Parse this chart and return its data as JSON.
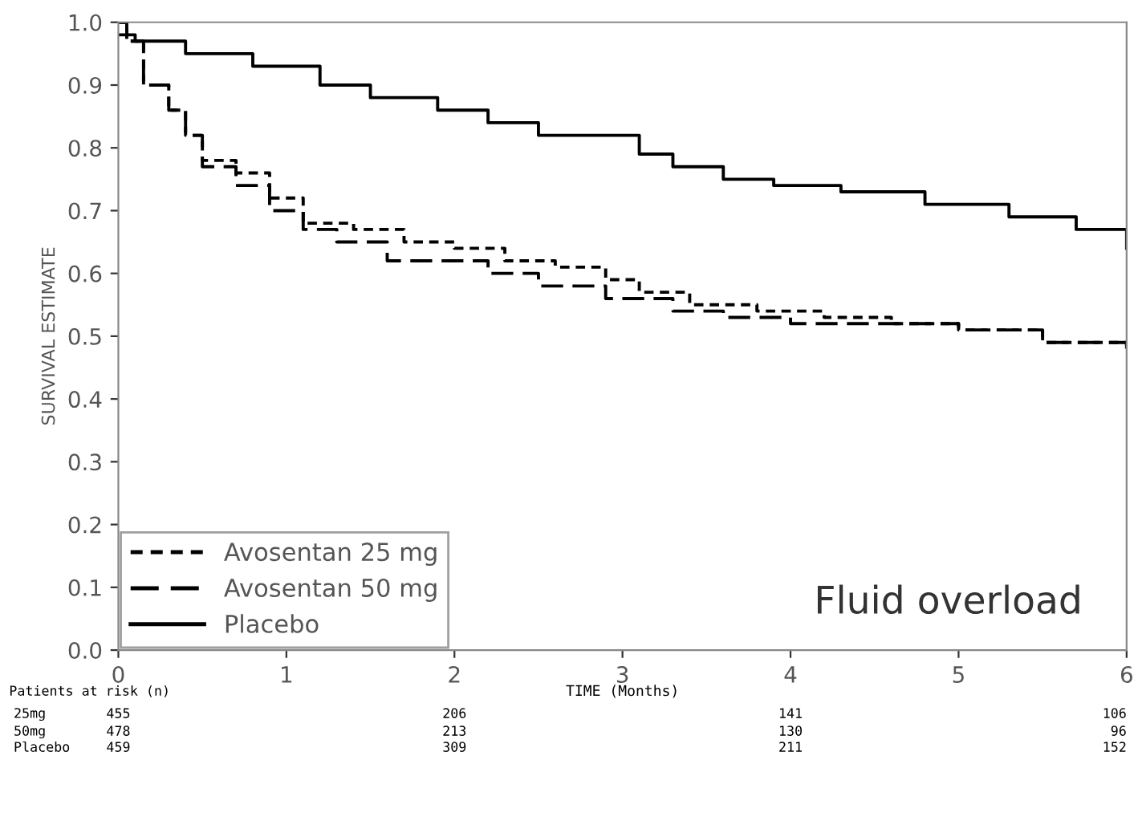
{
  "chart_data": {
    "type": "step",
    "xlabel": "TIME (Months)",
    "ylabel": "SURVIVAL ESTIMATE",
    "xlim": [
      0,
      6
    ],
    "ylim": [
      0,
      1
    ],
    "xticks": [
      0,
      1,
      2,
      3,
      4,
      5,
      6
    ],
    "yticks": [
      {
        "value": 0,
        "label": "0.0"
      },
      {
        "value": 0.1,
        "label": "0.1"
      },
      {
        "value": 0.2,
        "label": "0.2"
      },
      {
        "value": 0.3,
        "label": "0.3"
      },
      {
        "value": 0.4,
        "label": "0.4"
      },
      {
        "value": 0.5,
        "label": "0.5"
      },
      {
        "value": 0.6,
        "label": "0.6"
      },
      {
        "value": 0.7,
        "label": "0.7"
      },
      {
        "value": 0.8,
        "label": "0.8"
      },
      {
        "value": 0.9,
        "label": "0.9"
      },
      {
        "value": 1,
        "label": "1.0"
      }
    ],
    "grid": false,
    "legend": "bottom left",
    "marker": "none",
    "series": [
      {
        "name": "Avosentan 25 mg",
        "color": "#000000",
        "line_style": "dotted",
        "x": [
          0,
          0.05,
          0.15,
          0.3,
          0.4,
          0.5,
          0.7,
          0.9,
          1.1,
          1.4,
          1.7,
          2.0,
          2.3,
          2.6,
          2.9,
          3.1,
          3.4,
          3.8,
          4.2,
          4.6,
          5.0,
          5.5,
          6.0
        ],
        "values": [
          1.0,
          0.97,
          0.9,
          0.86,
          0.82,
          0.78,
          0.76,
          0.72,
          0.68,
          0.67,
          0.65,
          0.64,
          0.62,
          0.61,
          0.59,
          0.57,
          0.55,
          0.54,
          0.53,
          0.52,
          0.51,
          0.49,
          0.48
        ]
      },
      {
        "name": "Avosentan 50 mg",
        "color": "#000000",
        "line_style": "dashed",
        "x": [
          0,
          0.05,
          0.15,
          0.3,
          0.4,
          0.5,
          0.7,
          0.9,
          1.1,
          1.3,
          1.6,
          2.2,
          2.5,
          2.9,
          3.3,
          3.6,
          4.0,
          5.0,
          5.5,
          6.0
        ],
        "values": [
          1.0,
          0.97,
          0.9,
          0.86,
          0.82,
          0.77,
          0.74,
          0.7,
          0.67,
          0.65,
          0.62,
          0.6,
          0.58,
          0.56,
          0.54,
          0.53,
          0.52,
          0.51,
          0.49,
          0.48
        ]
      },
      {
        "name": "Placebo",
        "color": "#000000",
        "line_style": "solid",
        "x": [
          0,
          0.1,
          0.4,
          0.8,
          1.2,
          1.5,
          1.9,
          2.2,
          2.5,
          3.1,
          3.3,
          3.6,
          3.9,
          4.3,
          4.8,
          5.3,
          5.7,
          6.0
        ],
        "values": [
          0.98,
          0.97,
          0.95,
          0.93,
          0.9,
          0.88,
          0.86,
          0.84,
          0.82,
          0.79,
          0.77,
          0.75,
          0.74,
          0.73,
          0.71,
          0.69,
          0.67,
          0.64
        ]
      }
    ],
    "annotations": [
      "Patients at risk (n)",
      "25mg",
      "455",
      "206",
      "141",
      "106",
      "50mg",
      "478",
      "213",
      "130",
      "96",
      "Placebo",
      "459",
      "309",
      "211",
      "152",
      "Fluid overload"
    ]
  }
}
